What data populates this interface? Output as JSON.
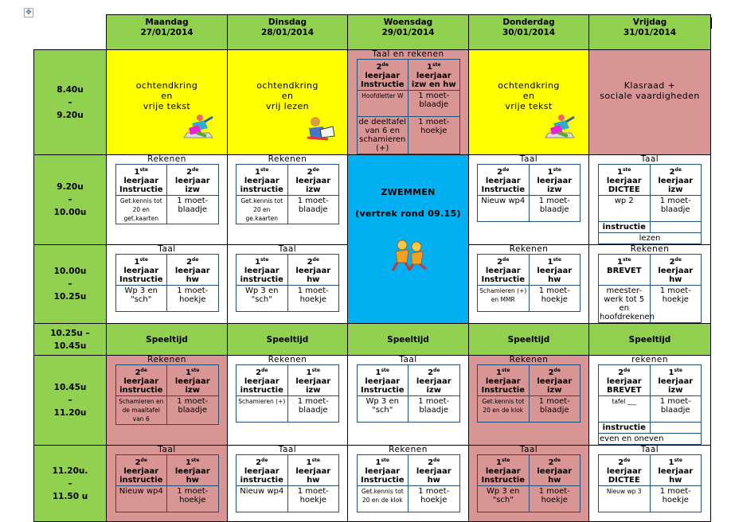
{
  "colors": {
    "green": "#92d050",
    "yellow": "#ffff00",
    "pink": "#d99594",
    "blue": "#00b0f0",
    "table_border": "#1f4e79"
  },
  "days": [
    {
      "name": "Maandag",
      "date": "27/01/2014"
    },
    {
      "name": "Dinsdag",
      "date": "28/01/2014"
    },
    {
      "name": "Woensdag",
      "date": "29/01/2014"
    },
    {
      "name": "Donderdag",
      "date": "30/01/2014"
    },
    {
      "name": "Vrijdag",
      "date": "31/01/2014"
    }
  ],
  "rows": [
    {
      "time": [
        "8.40u",
        "–",
        "9.20u"
      ],
      "cells": [
        {
          "bg": "y",
          "type": "text",
          "lines": [
            "ochtendkring",
            "en",
            "vrije tekst"
          ],
          "icon": "child-drawing-icon"
        },
        {
          "bg": "y",
          "type": "text",
          "lines": [
            "ochtendkring",
            "en",
            "vrij lezen"
          ],
          "icon": "child-reading-icon"
        },
        {
          "bg": "p",
          "type": "sub",
          "title": "Taal en rekenen",
          "head": [
            {
              "n": "2",
              "sup": "de",
              "t": "leerjaar Instructie"
            },
            {
              "n": "1",
              "sup": "ste",
              "t": "leerjaar izw en hw"
            }
          ],
          "body": [
            [
              "Hoofdletter W",
              "1 moet-blaadje"
            ],
            [
              "de deeltafel van 6 en schamieren (+)",
              "1 moet-hoekje"
            ]
          ],
          "small": [
            0
          ]
        },
        {
          "bg": "y",
          "type": "text",
          "lines": [
            "ochtendkring",
            "en",
            "vrije tekst"
          ],
          "icon": "child-drawing-icon"
        },
        {
          "bg": "p",
          "type": "text",
          "lines": [
            "Klasraad +",
            "sociale vaardigheden"
          ]
        }
      ]
    },
    {
      "time": [
        "9.20u",
        "–",
        "10.00u"
      ],
      "cells": [
        {
          "bg": "w",
          "type": "sub",
          "title": "Rekenen",
          "head": [
            {
              "n": "1",
              "sup": "ste",
              "t": "leerjaar Instructie"
            },
            {
              "n": "2",
              "sup": "de",
              "t": "leerjaar izw"
            }
          ],
          "body": [
            [
              "Get.kennis tot 20 en get.kaarten",
              "1 moet-blaadje"
            ]
          ],
          "small": [
            0
          ]
        },
        {
          "bg": "w",
          "type": "sub",
          "title": "Rekenen",
          "head": [
            {
              "n": "1",
              "sup": "ste",
              "t": "leerjaar instructie"
            },
            {
              "n": "2",
              "sup": "de",
              "t": "leerjaar izw"
            }
          ],
          "body": [
            [
              "Get.kennis tot 20 en ge.kaarten",
              "1 moet-blaadje"
            ]
          ],
          "small": [
            0
          ]
        },
        {
          "bg": "b",
          "type": "swim",
          "rowspan": 2,
          "lines": [
            "ZWEMMEN",
            "(vertrek rond 09.15)"
          ],
          "icon": "children-running-icon"
        },
        {
          "bg": "w",
          "type": "sub",
          "title": "Taal",
          "head": [
            {
              "n": "2",
              "sup": "de",
              "t": "leerjaar Instructie"
            },
            {
              "n": "1",
              "sup": "ste",
              "t": "leerjaar izw"
            }
          ],
          "body": [
            [
              "Nieuw wp4",
              "1 moet-blaadje"
            ]
          ]
        },
        {
          "bg": "w",
          "type": "sub",
          "title": "Taal",
          "head": [
            {
              "n": "1",
              "sup": "ste",
              "t": "leerjaar DICTEE"
            },
            {
              "n": "2",
              "sup": "de",
              "t": "leerjaar izw"
            }
          ],
          "body": [
            [
              "wp 2",
              "1 moet-blaadje"
            ],
            [
              "instructie",
              ""
            ]
          ],
          "boldrow": [
            1
          ],
          "full": "lezen"
        }
      ]
    },
    {
      "time": [
        "10.00u",
        "–",
        "10.25u"
      ],
      "cells": [
        {
          "bg": "w",
          "type": "sub",
          "title": "Taal",
          "head": [
            {
              "n": "1",
              "sup": "ste",
              "t": "leerjaar Instructie"
            },
            {
              "n": "2",
              "sup": "de",
              "t": "leerjaar hw"
            }
          ],
          "body": [
            [
              "Wp 3 en \"sch\"",
              "1 moet-hoekje"
            ]
          ]
        },
        {
          "bg": "w",
          "type": "sub",
          "title": "Taal",
          "head": [
            {
              "n": "1",
              "sup": "ste",
              "t": "leerjaar instructie"
            },
            {
              "n": "2",
              "sup": "de",
              "t": "leerjaar hw"
            }
          ],
          "body": [
            [
              "Wp 3 en \"sch\"",
              "1 moet-hoekje"
            ]
          ]
        },
        {
          "bg": "w",
          "type": "sub",
          "title": "Rekenen",
          "head": [
            {
              "n": "2",
              "sup": "de",
              "t": "leerjaar Instructie"
            },
            {
              "n": "1",
              "sup": "ste",
              "t": "leerjaar hw"
            }
          ],
          "body": [
            [
              "Schamieren (+) en MMR",
              "1 moet-hoekje"
            ]
          ],
          "small": [
            0
          ]
        },
        {
          "bg": "w",
          "type": "sub",
          "title": "Rekenen",
          "head": [
            {
              "n": "1",
              "sup": "ste",
              "t": "BREVET"
            },
            {
              "n": "2",
              "sup": "de",
              "t": "leerjaar hw"
            }
          ],
          "body": [
            [
              "meester-werk tot 5 en hoofdrekenen",
              "1 moet-hoekje"
            ]
          ]
        }
      ]
    },
    {
      "time": [
        "10.25u –",
        "10.45u"
      ],
      "cells": [
        {
          "bg": "g",
          "type": "play",
          "label": "Speeltijd"
        },
        {
          "bg": "g",
          "type": "play",
          "label": "Speeltijd"
        },
        {
          "bg": "g",
          "type": "play",
          "label": "Speeltijd"
        },
        {
          "bg": "g",
          "type": "play",
          "label": "Speeltijd"
        },
        {
          "bg": "g",
          "type": "play",
          "label": "Speeltijd"
        }
      ]
    },
    {
      "time": [
        "10.45u",
        "–",
        "11.20u"
      ],
      "cells": [
        {
          "bg": "p",
          "type": "sub",
          "title": "Rekenen",
          "head": [
            {
              "n": "2",
              "sup": "de",
              "t": "leerjaar instructie"
            },
            {
              "n": "1",
              "sup": "ste",
              "t": "leerjaar izw"
            }
          ],
          "body": [
            [
              "Schamieren en de maaltafel van 6",
              "1 moet-blaadje"
            ]
          ],
          "small": [
            0
          ]
        },
        {
          "bg": "w",
          "type": "sub",
          "title": "Rekenen",
          "head": [
            {
              "n": "2",
              "sup": "de",
              "t": "leerjaar instructie"
            },
            {
              "n": "1",
              "sup": "ste",
              "t": "leerjaar izw"
            }
          ],
          "body": [
            [
              "Schamieren (+)",
              "1 moet-blaadje"
            ]
          ],
          "small": [
            0
          ]
        },
        {
          "bg": "w",
          "type": "sub",
          "title": "Taal",
          "head": [
            {
              "n": "1",
              "sup": "ste",
              "t": "leerjaar Instructie"
            },
            {
              "n": "2",
              "sup": "de",
              "t": "leerjaar izw"
            }
          ],
          "body": [
            [
              "Wp 3 en \"sch\"",
              "1 moet-blaadje"
            ]
          ]
        },
        {
          "bg": "p",
          "type": "sub",
          "title": "Rekenen",
          "head": [
            {
              "n": "1",
              "sup": "ste",
              "t": "leerjaar Instructie"
            },
            {
              "n": "2",
              "sup": "de",
              "t": "leerjaar izw"
            }
          ],
          "body": [
            [
              "Get.kennis tot 20 en de klok",
              "1 moet-blaadje"
            ]
          ],
          "small": [
            0
          ]
        },
        {
          "bg": "w",
          "type": "sub",
          "title": "rekenen",
          "head": [
            {
              "n": "2",
              "sup": "de",
              "t": "leerjaar BREVET"
            },
            {
              "n": "1",
              "sup": "ste",
              "t": "leerjaar izw"
            }
          ],
          "body": [
            [
              "tafel ___",
              "1 moet-blaadje"
            ],
            [
              "instructie",
              ""
            ]
          ],
          "boldrow": [
            1
          ],
          "small": [
            0
          ],
          "full": "even en oneven"
        }
      ]
    },
    {
      "time": [
        "11.20u.",
        "–",
        "11.50 u"
      ],
      "cells": [
        {
          "bg": "p",
          "type": "sub",
          "title": "Taal",
          "head": [
            {
              "n": "2",
              "sup": "de",
              "t": "leerjaar instructie"
            },
            {
              "n": "1",
              "sup": "ste",
              "t": "leerjaar hw"
            }
          ],
          "body": [
            [
              "Nieuw wp4",
              "1 moet-hoekje"
            ]
          ]
        },
        {
          "bg": "w",
          "type": "sub",
          "title": "Taal",
          "head": [
            {
              "n": "2",
              "sup": "de",
              "t": "leerjaar instructie"
            },
            {
              "n": "1",
              "sup": "ste",
              "t": "leerjaar hw"
            }
          ],
          "body": [
            [
              "Nieuw wp4",
              "1 moet-hoekje"
            ]
          ]
        },
        {
          "bg": "w",
          "type": "sub",
          "title": "Rekenen",
          "head": [
            {
              "n": "1",
              "sup": "ste",
              "t": "leerjaar Instructie"
            },
            {
              "n": "2",
              "sup": "de",
              "t": "leerjaar hw"
            }
          ],
          "body": [
            [
              "Get.kennis tot 20 en de klok",
              "1 moet-hoekje"
            ]
          ],
          "small": [
            0
          ]
        },
        {
          "bg": "p",
          "type": "sub",
          "title": "Taal",
          "head": [
            {
              "n": "1",
              "sup": "ste",
              "t": "leerjaar Instructie"
            },
            {
              "n": "2",
              "sup": "de",
              "t": "leerjaar hw"
            }
          ],
          "body": [
            [
              "Wp 3 en \"sch\"",
              "1 moet-hoekje"
            ]
          ]
        },
        {
          "bg": "w",
          "type": "sub",
          "title": "Taal",
          "head": [
            {
              "n": "2",
              "sup": "de",
              "t": "leerjaar DICTEE"
            },
            {
              "n": "1",
              "sup": "ste",
              "t": "leerjaar hw"
            }
          ],
          "body": [
            [
              "Nieuw wp 3",
              "1 moet-hoekje"
            ]
          ],
          "small": [
            0
          ]
        }
      ]
    }
  ]
}
